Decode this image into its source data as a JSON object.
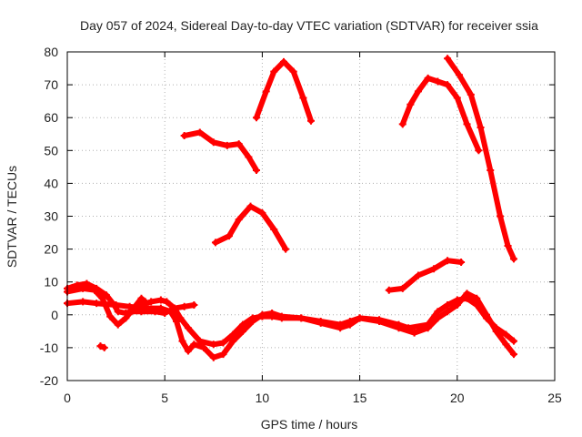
{
  "chart_data": {
    "type": "scatter",
    "title": "Day 057 of 2024, Sidereal Day-to-day VTEC variation (SDTVAR) for receiver ssia",
    "xlabel": "GPS time / hours",
    "ylabel": "SDTVAR / TECUs",
    "xlim": [
      0,
      25
    ],
    "ylim": [
      -20,
      80
    ],
    "xticks": [
      "0",
      "5",
      "10",
      "15",
      "20",
      "25"
    ],
    "yticks": [
      "-20",
      "-10",
      "0",
      "10",
      "20",
      "30",
      "40",
      "50",
      "60",
      "70",
      "80"
    ],
    "grid": true,
    "color": "#ff0000",
    "series": [
      {
        "name": "s1",
        "points": [
          [
            0,
            8
          ],
          [
            0.5,
            9
          ],
          [
            1,
            9.5
          ],
          [
            1.5,
            8
          ],
          [
            2,
            6
          ],
          [
            2.4,
            3
          ],
          [
            2.6,
            1
          ],
          [
            3,
            0.5
          ],
          [
            3.3,
            1
          ],
          [
            3.8,
            3
          ],
          [
            4.3,
            4
          ],
          [
            4.8,
            4.5
          ],
          [
            5.1,
            4
          ],
          [
            5.5,
            2
          ],
          [
            5.8,
            -1
          ],
          [
            6.2,
            -4
          ],
          [
            6.8,
            -8
          ],
          [
            7.5,
            -9
          ],
          [
            8,
            -8.5
          ],
          [
            8.5,
            -6
          ],
          [
            9,
            -3
          ],
          [
            9.5,
            -1
          ],
          [
            10,
            -0.5
          ],
          [
            10.5,
            -0.5
          ],
          [
            11,
            -1
          ],
          [
            12,
            -1
          ],
          [
            13,
            -2
          ],
          [
            14,
            -3
          ],
          [
            14.5,
            -2
          ],
          [
            15,
            -1
          ],
          [
            16,
            -1.5
          ],
          [
            17,
            -3
          ],
          [
            17.5,
            -4
          ],
          [
            18.5,
            -3
          ],
          [
            19,
            1
          ],
          [
            19.5,
            3
          ],
          [
            20,
            4.5
          ],
          [
            20.5,
            5
          ],
          [
            21,
            3
          ],
          [
            21.5,
            -1
          ],
          [
            22,
            -4
          ],
          [
            22.5,
            -6
          ],
          [
            22.9,
            -8
          ]
        ]
      },
      {
        "name": "s2",
        "points": [
          [
            0,
            3.5
          ],
          [
            0.8,
            4
          ],
          [
            1.5,
            3.5
          ],
          [
            2.5,
            3
          ],
          [
            3.2,
            2.5
          ],
          [
            4,
            2
          ],
          [
            4.8,
            2
          ],
          [
            5.3,
            1
          ],
          [
            5.6,
            -2
          ],
          [
            5.9,
            -8
          ],
          [
            6.2,
            -11
          ],
          [
            6.5,
            -9
          ],
          [
            7,
            -10
          ],
          [
            7.5,
            -13
          ],
          [
            8,
            -12
          ],
          [
            8.5,
            -8
          ],
          [
            9,
            -5
          ],
          [
            9.5,
            -2
          ],
          [
            10,
            0
          ],
          [
            10.5,
            0.5
          ],
          [
            11,
            -0.5
          ],
          [
            12,
            -1
          ],
          [
            13,
            -2.5
          ],
          [
            14,
            -4
          ],
          [
            14.5,
            -3
          ],
          [
            15,
            -1
          ],
          [
            16,
            -2
          ],
          [
            17,
            -4
          ],
          [
            17.8,
            -5.5
          ],
          [
            18.5,
            -4
          ],
          [
            19,
            -1
          ],
          [
            19.5,
            1
          ],
          [
            20,
            3
          ],
          [
            20.5,
            6.5
          ],
          [
            21,
            5
          ],
          [
            21.5,
            0
          ],
          [
            22,
            -5
          ],
          [
            22.5,
            -9
          ],
          [
            22.9,
            -12
          ]
        ]
      },
      {
        "name": "s3",
        "points": [
          [
            0,
            7
          ],
          [
            0.8,
            8
          ],
          [
            1.4,
            7.5
          ],
          [
            1.8,
            5
          ],
          [
            2.2,
            -0.5
          ],
          [
            2.6,
            -3
          ],
          [
            3,
            -1
          ],
          [
            3.4,
            2
          ],
          [
            3.8,
            5
          ],
          [
            4,
            4
          ]
        ]
      },
      {
        "name": "s4",
        "points": [
          [
            1.7,
            -9.5
          ],
          [
            1.9,
            -10
          ]
        ]
      },
      {
        "name": "s5",
        "points": [
          [
            3.2,
            1
          ],
          [
            3.8,
            1
          ],
          [
            4.5,
            1
          ],
          [
            5,
            0.5
          ],
          [
            5.5,
            2
          ],
          [
            6,
            2.5
          ],
          [
            6.5,
            3
          ]
        ]
      },
      {
        "name": "s6",
        "points": [
          [
            6,
            54.5
          ],
          [
            6.8,
            55.5
          ],
          [
            7.5,
            52.5
          ],
          [
            8.2,
            51.5
          ],
          [
            8.8,
            52
          ],
          [
            9.3,
            48
          ],
          [
            9.7,
            44
          ]
        ]
      },
      {
        "name": "s7",
        "points": [
          [
            7.6,
            22
          ],
          [
            8.3,
            24
          ],
          [
            8.8,
            29
          ],
          [
            9.4,
            33
          ],
          [
            10,
            31
          ],
          [
            10.6,
            26
          ],
          [
            11.2,
            20
          ]
        ]
      },
      {
        "name": "s8",
        "points": [
          [
            9.7,
            60
          ],
          [
            10.2,
            68
          ],
          [
            10.6,
            74
          ],
          [
            11.1,
            77
          ],
          [
            11.6,
            74
          ],
          [
            12.1,
            66
          ],
          [
            12.5,
            59
          ]
        ]
      },
      {
        "name": "s9",
        "points": [
          [
            16.5,
            7.5
          ],
          [
            17.2,
            8
          ],
          [
            18,
            12
          ],
          [
            18.8,
            14
          ],
          [
            19.5,
            16.5
          ],
          [
            20.2,
            16
          ]
        ]
      },
      {
        "name": "s10",
        "points": [
          [
            17.2,
            58
          ],
          [
            17.6,
            64
          ],
          [
            18,
            68
          ],
          [
            18.5,
            72
          ],
          [
            19,
            71
          ],
          [
            19.5,
            70
          ],
          [
            20,
            66
          ],
          [
            20.5,
            58
          ],
          [
            21.1,
            50
          ]
        ]
      },
      {
        "name": "s11",
        "points": [
          [
            19.5,
            78
          ],
          [
            20.1,
            73
          ],
          [
            20.7,
            67
          ],
          [
            21.2,
            57
          ],
          [
            21.7,
            44
          ],
          [
            22.2,
            30
          ],
          [
            22.6,
            21
          ],
          [
            22.9,
            17
          ]
        ]
      }
    ]
  }
}
